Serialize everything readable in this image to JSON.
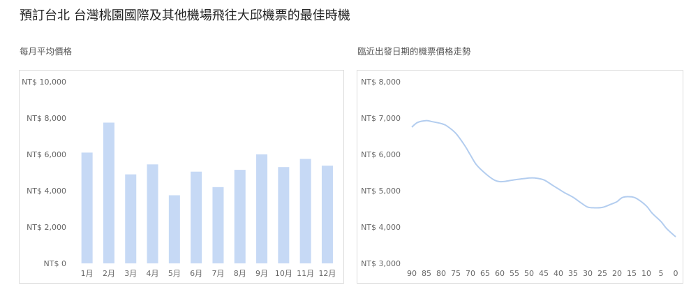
{
  "page": {
    "title": "預訂台北 台灣桃園國際及其他機場飛往大邱機票的最佳時機"
  },
  "colors": {
    "bar": "#c6d9f5",
    "line": "#b3cdef",
    "axis_text": "#666666",
    "panel_border": "#dcdcdc"
  },
  "chart_data": [
    {
      "type": "bar",
      "title": "每月平均價格",
      "categories": [
        "1月",
        "2月",
        "3月",
        "4月",
        "5月",
        "6月",
        "7月",
        "8月",
        "9月",
        "10月",
        "11月",
        "12月"
      ],
      "values": [
        6100,
        7750,
        4900,
        5450,
        3750,
        5050,
        4200,
        5150,
        6000,
        5300,
        5750,
        5380
      ],
      "ylim": [
        0,
        10000
      ],
      "ytick_values": [
        0,
        2000,
        4000,
        6000,
        8000,
        10000
      ],
      "ytick_labels": [
        "NT$ 0",
        "NT$ 2,000",
        "NT$ 4,000",
        "NT$ 6,000",
        "NT$ 8,000",
        "NT$ 10,000"
      ],
      "grid": false
    },
    {
      "type": "line",
      "title": "臨近出發日期的機票價格走勢",
      "x": [
        90,
        88,
        85,
        83,
        80,
        78,
        75,
        72,
        70,
        68,
        65,
        62,
        60,
        58,
        55,
        52,
        50,
        48,
        45,
        42,
        40,
        38,
        35,
        32,
        30,
        28,
        25,
        22,
        20,
        18,
        15,
        13,
        10,
        8,
        5,
        3,
        0
      ],
      "y": [
        6750,
        6880,
        6930,
        6900,
        6850,
        6780,
        6580,
        6250,
        5980,
        5720,
        5480,
        5300,
        5250,
        5260,
        5300,
        5330,
        5350,
        5350,
        5300,
        5150,
        5050,
        4950,
        4820,
        4650,
        4550,
        4530,
        4540,
        4630,
        4700,
        4820,
        4830,
        4770,
        4580,
        4380,
        4150,
        3950,
        3730
      ],
      "xticks": [
        90,
        85,
        80,
        75,
        70,
        65,
        60,
        55,
        50,
        45,
        40,
        35,
        30,
        25,
        20,
        15,
        10,
        5,
        0
      ],
      "xlim": [
        90,
        0
      ],
      "ylim": [
        3000,
        8000
      ],
      "ytick_values": [
        3000,
        4000,
        5000,
        6000,
        7000,
        8000
      ],
      "ytick_labels": [
        "NT$ 3,000",
        "NT$ 4,000",
        "NT$ 5,000",
        "NT$ 6,000",
        "NT$ 7,000",
        "NT$ 8,000"
      ],
      "grid": false
    }
  ]
}
